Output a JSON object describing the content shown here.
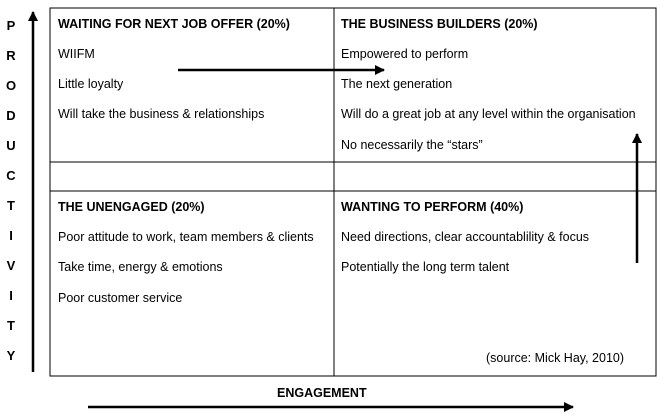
{
  "axis": {
    "y_letters": [
      "P",
      "R",
      "O",
      "D",
      "U",
      "C",
      "T",
      "I",
      "V",
      "I",
      "T",
      "Y"
    ],
    "x_label": "ENGAGEMENT"
  },
  "quadrants": {
    "top_left": {
      "title": "WAITING FOR NEXT JOB OFFER (20%)",
      "items": [
        "WIIFM",
        "Little loyalty",
        "Will take the business & relationships"
      ]
    },
    "top_right": {
      "title": "THE BUSINESS BUILDERS (20%)",
      "items": [
        "Empowered to perform",
        "The next generation",
        "Will do a great job at any level within the organisation",
        "No necessarily the “stars”"
      ]
    },
    "bottom_left": {
      "title": "THE UNENGAGED (20%)",
      "items": [
        "Poor attitude to work, team members & clients",
        "Take time, energy & emotions",
        "Poor customer service"
      ]
    },
    "bottom_right": {
      "title": "WANTING TO PERFORM (40%)",
      "items": [
        "Need directions, clear accountablility & focus",
        "Potentially the long term talent"
      ]
    }
  },
  "source": "(source: Mick Hay, 2010)"
}
